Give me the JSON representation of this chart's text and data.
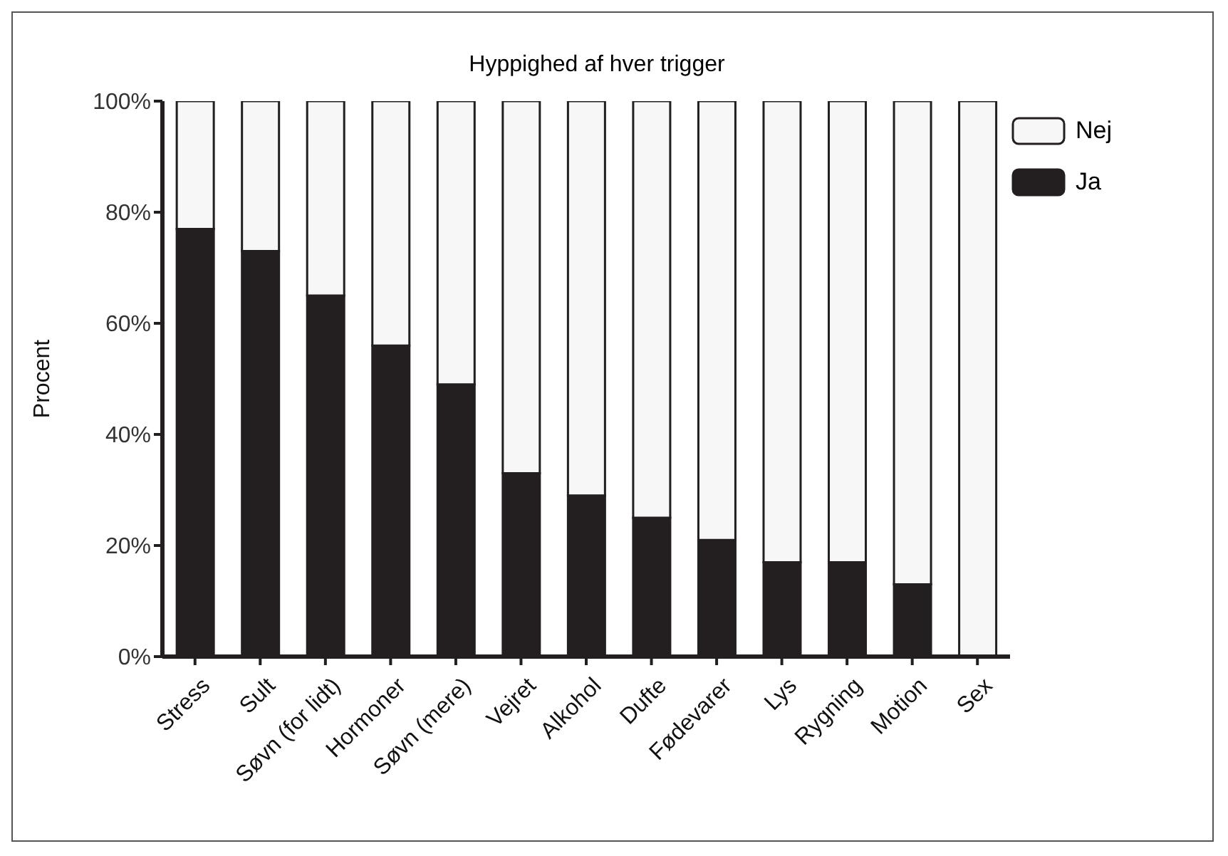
{
  "chart_data": {
    "type": "bar",
    "title": "Hyppighed af hver trigger",
    "ylabel": "Procent",
    "stacked": true,
    "legend": "top right",
    "grid": false,
    "categories": [
      "Stress",
      "Sult",
      "Søvn (for lidt)",
      "Hormoner",
      "Søvn (mere)",
      "Vejret",
      "Alkohol",
      "Dufte",
      "Fødevarer",
      "Lys",
      "Rygning",
      "Motion",
      "Sex"
    ],
    "series": [
      {
        "name": "Ja",
        "color": "#231f20",
        "values": [
          77,
          73,
          65,
          56,
          49,
          33,
          29,
          25,
          21,
          17,
          17,
          13,
          0
        ]
      },
      {
        "name": "Nej",
        "color": "#f7f7f7",
        "values": [
          23,
          27,
          35,
          44,
          51,
          67,
          71,
          75,
          79,
          83,
          83,
          87,
          100
        ]
      }
    ],
    "ylim": [
      0,
      100
    ],
    "yticks": [
      {
        "value": 0,
        "label": "0%"
      },
      {
        "value": 20,
        "label": "20%"
      },
      {
        "value": 40,
        "label": "40%"
      },
      {
        "value": 60,
        "label": "60%"
      },
      {
        "value": 80,
        "label": "80%"
      },
      {
        "value": 100,
        "label": "100%"
      }
    ]
  }
}
